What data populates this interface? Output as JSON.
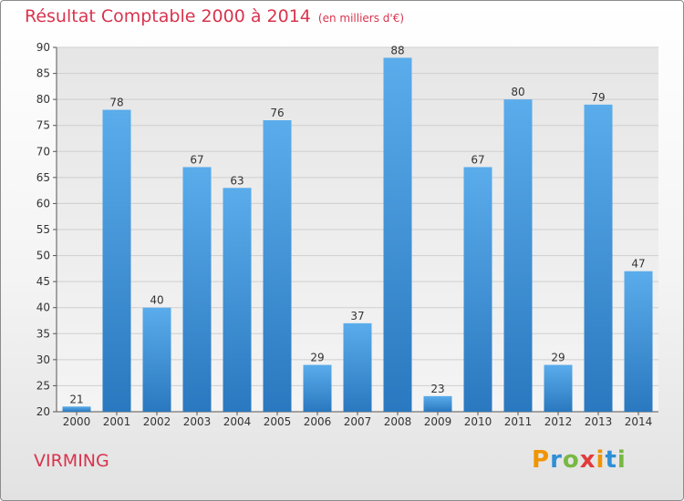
{
  "title": "Résultat Comptable 2000 à 2014",
  "subtitle": "(en milliers d'€)",
  "commune": "VIRMING",
  "logo": {
    "text": "Proxiti",
    "letters": [
      {
        "ch": "P",
        "color": "#f29400"
      },
      {
        "ch": "r",
        "color": "#2f8fd6"
      },
      {
        "ch": "o",
        "color": "#78b843"
      },
      {
        "ch": "x",
        "color": "#e23b3b"
      },
      {
        "ch": "i",
        "color": "#f29400"
      },
      {
        "ch": "t",
        "color": "#2f8fd6"
      },
      {
        "ch": "i",
        "color": "#78b843"
      }
    ]
  },
  "colors": {
    "bar_top": "#5aaceb",
    "bar_bottom": "#2a78bf",
    "title": "#d9344e",
    "grid": "#cfcfcf"
  },
  "chart_data": {
    "type": "bar",
    "title": "Résultat Comptable 2000 à 2014",
    "subtitle": "(en milliers d'€)",
    "categories": [
      "2000",
      "2001",
      "2002",
      "2003",
      "2004",
      "2005",
      "2006",
      "2007",
      "2008",
      "2009",
      "2010",
      "2011",
      "2012",
      "2013",
      "2014"
    ],
    "values": [
      21,
      78,
      40,
      67,
      63,
      76,
      29,
      37,
      88,
      23,
      67,
      80,
      29,
      79,
      47
    ],
    "ylim": [
      20,
      90
    ],
    "yticks": [
      20,
      25,
      30,
      35,
      40,
      45,
      50,
      55,
      60,
      65,
      70,
      75,
      80,
      85,
      90
    ],
    "xlabel": "",
    "ylabel": "",
    "grid": true,
    "data_labels": true
  }
}
